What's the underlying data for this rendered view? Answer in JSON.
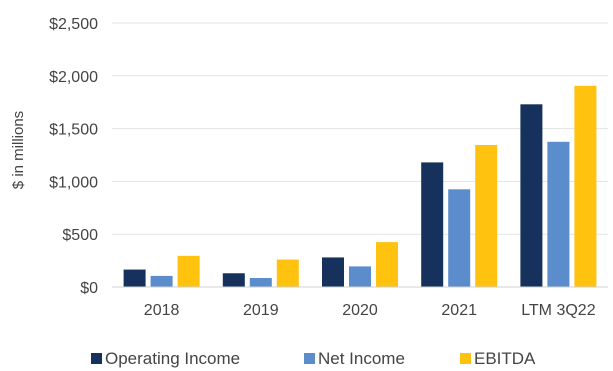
{
  "chart_data": {
    "type": "bar",
    "title": "",
    "xlabel": "",
    "ylabel": "$ in millions",
    "ylim": [
      0,
      2500
    ],
    "yticks": [
      0,
      500,
      1000,
      1500,
      2000,
      2500
    ],
    "ytick_labels": [
      "$0",
      "$500",
      "$1,000",
      "$1,500",
      "$2,000",
      "$2,500"
    ],
    "categories": [
      "2018",
      "2019",
      "2020",
      "2021",
      "LTM 3Q22"
    ],
    "series": [
      {
        "name": "Operating Income",
        "color": "#16325c",
        "values": [
          165,
          130,
          280,
          1180,
          1730
        ]
      },
      {
        "name": "Net Income",
        "color": "#5b8ccc",
        "values": [
          105,
          85,
          195,
          925,
          1375
        ]
      },
      {
        "name": "EBITDA",
        "color": "#ffc20e",
        "values": [
          295,
          260,
          425,
          1345,
          1905
        ]
      }
    ],
    "grid": true,
    "legend_position": "bottom"
  }
}
